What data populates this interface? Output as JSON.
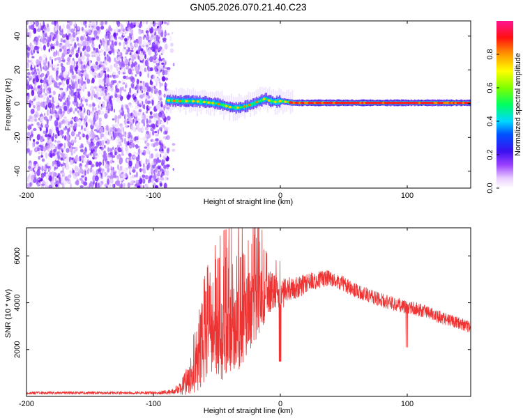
{
  "title": "GN05.2026.070.21.40.C23",
  "chart_data": [
    {
      "type": "heatmap",
      "name": "spectrogram",
      "xlabel": "Height of straight line (km)",
      "ylabel": "Frequency (Hz)",
      "xlim": [
        -200,
        150
      ],
      "ylim": [
        -50,
        49
      ],
      "xticks": [
        "-200",
        "-100",
        "0",
        "100"
      ],
      "yticks": [
        "-40",
        "-20",
        "0",
        "20",
        "40"
      ],
      "noise_region_x": [
        -200,
        -88
      ],
      "signal_start_x": -90,
      "signal_track": {
        "x": [
          -90,
          -80,
          -70,
          -60,
          -55,
          -50,
          -45,
          -40,
          -35,
          -30,
          -25,
          -20,
          -15,
          -12,
          -8,
          -4,
          0,
          5,
          10,
          20,
          40,
          60,
          80,
          100,
          120,
          150
        ],
        "freq": [
          2,
          1.5,
          1.5,
          1,
          0.5,
          0,
          -1,
          -2,
          -2.5,
          -2,
          -1,
          0.5,
          2,
          3,
          1.5,
          1,
          1.5,
          1,
          0.5,
          0.5,
          0.5,
          0.5,
          0.5,
          0.5,
          0.5,
          0.5
        ]
      },
      "colorbar": {
        "label": "Normalized spectral amplitude",
        "ticks": [
          "0.0",
          "0.2",
          "0.4",
          "0.6",
          "0.8"
        ],
        "range": [
          0,
          1
        ]
      }
    },
    {
      "type": "line",
      "name": "snr",
      "xlabel": "Height of straight line (km)",
      "ylabel": "SNR (10 * v/v)",
      "xlim": [
        -200,
        150
      ],
      "ylim": [
        0,
        7200
      ],
      "xticks": [
        "-200",
        "-100",
        "0",
        "100"
      ],
      "yticks": [
        "2000",
        "4000",
        "6000"
      ],
      "color": "#ee3333",
      "envelope": {
        "x": [
          -200,
          -120,
          -95,
          -85,
          -78,
          -72,
          -66,
          -60,
          -55,
          -50,
          -45,
          -40,
          -35,
          -30,
          -25,
          -20,
          -15,
          -10,
          -5,
          0,
          5,
          10,
          15,
          20,
          25,
          30,
          35,
          40,
          50,
          60,
          70,
          80,
          90,
          100,
          110,
          120,
          130,
          140,
          150
        ],
        "base": [
          150,
          150,
          160,
          200,
          350,
          800,
          1400,
          2000,
          2600,
          2800,
          2900,
          3000,
          3200,
          3500,
          3900,
          4100,
          4300,
          4500,
          4700,
          4400,
          4500,
          4600,
          4700,
          4800,
          4900,
          5000,
          5050,
          5000,
          4800,
          4500,
          4300,
          4100,
          3950,
          3800,
          3700,
          3500,
          3300,
          3150,
          2950
        ],
        "amp": [
          60,
          60,
          70,
          120,
          300,
          700,
          1200,
          1600,
          1800,
          2000,
          2200,
          2200,
          2200,
          2200,
          2000,
          1800,
          1500,
          1200,
          900,
          700,
          600,
          500,
          450,
          420,
          400,
          380,
          360,
          340,
          320,
          300,
          300,
          300,
          300,
          290,
          280,
          270,
          260,
          250,
          240
        ]
      }
    }
  ]
}
